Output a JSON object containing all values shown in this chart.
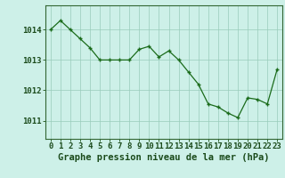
{
  "hours": [
    0,
    1,
    2,
    3,
    4,
    5,
    6,
    7,
    8,
    9,
    10,
    11,
    12,
    13,
    14,
    15,
    16,
    17,
    18,
    19,
    20,
    21,
    22,
    23
  ],
  "pressure": [
    1014.0,
    1014.3,
    1014.0,
    1013.7,
    1013.4,
    1013.0,
    1013.0,
    1013.0,
    1013.0,
    1013.35,
    1013.45,
    1013.1,
    1013.3,
    1013.0,
    1012.6,
    1012.2,
    1011.55,
    1011.45,
    1011.25,
    1011.1,
    1011.75,
    1011.7,
    1011.55,
    1012.7
  ],
  "line_color": "#1a6b1a",
  "marker": "+",
  "marker_size": 3,
  "bg_color": "#cdf0e8",
  "grid_color": "#99ccbb",
  "ylabel_ticks": [
    1011,
    1012,
    1013,
    1014
  ],
  "xlabel": "Graphe pression niveau de la mer (hPa)",
  "xlabel_fontsize": 7.5,
  "tick_fontsize": 6.5,
  "ylim": [
    1010.4,
    1014.8
  ],
  "xlim": [
    -0.5,
    23.5
  ]
}
